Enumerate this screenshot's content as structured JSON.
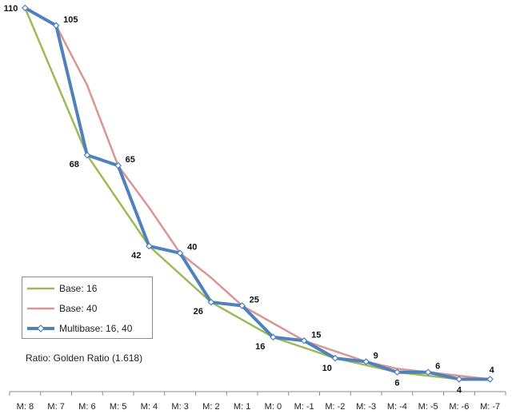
{
  "chart_data": {
    "type": "line",
    "categories": [
      "M: 8",
      "M: 7",
      "M: 6",
      "M: 5",
      "M: 4",
      "M: 3",
      "M: 2",
      "M: 1",
      "M: 0",
      "M: -1",
      "M: -2",
      "M: -3",
      "M: -4",
      "M: -5",
      "M: -6",
      "M: -7"
    ],
    "series": [
      {
        "name": "Base: 16",
        "color": "#9bbb59",
        "values": [
          110,
          89,
          68,
          55,
          42,
          34,
          26,
          21,
          16,
          13,
          10,
          8,
          6,
          5,
          4,
          4
        ]
      },
      {
        "name": "Base: 40",
        "color": "#d99694",
        "values": [
          110,
          105,
          88,
          65,
          53,
          40,
          33,
          25,
          20,
          15,
          12,
          9,
          7,
          6,
          5,
          4
        ]
      },
      {
        "name": "Multibase: 16, 40",
        "color": "#4f81bd",
        "values": [
          110,
          105,
          68,
          65,
          42,
          40,
          26,
          25,
          16,
          15,
          10,
          9,
          6,
          6,
          4,
          4
        ]
      }
    ],
    "data_labels": [
      "110",
      "105",
      "68",
      "65",
      "42",
      "40",
      "26",
      "25",
      "16",
      "15",
      "10",
      "9",
      "6",
      "6",
      "4",
      "4"
    ],
    "ylim": [
      0,
      110
    ],
    "grid": false,
    "legend_position": "bottom-left"
  },
  "legend": {
    "items": [
      "Base: 16",
      "Base: 40",
      "Multibase: 16, 40"
    ]
  },
  "note": "Ratio: Golden Ratio (1.618)"
}
